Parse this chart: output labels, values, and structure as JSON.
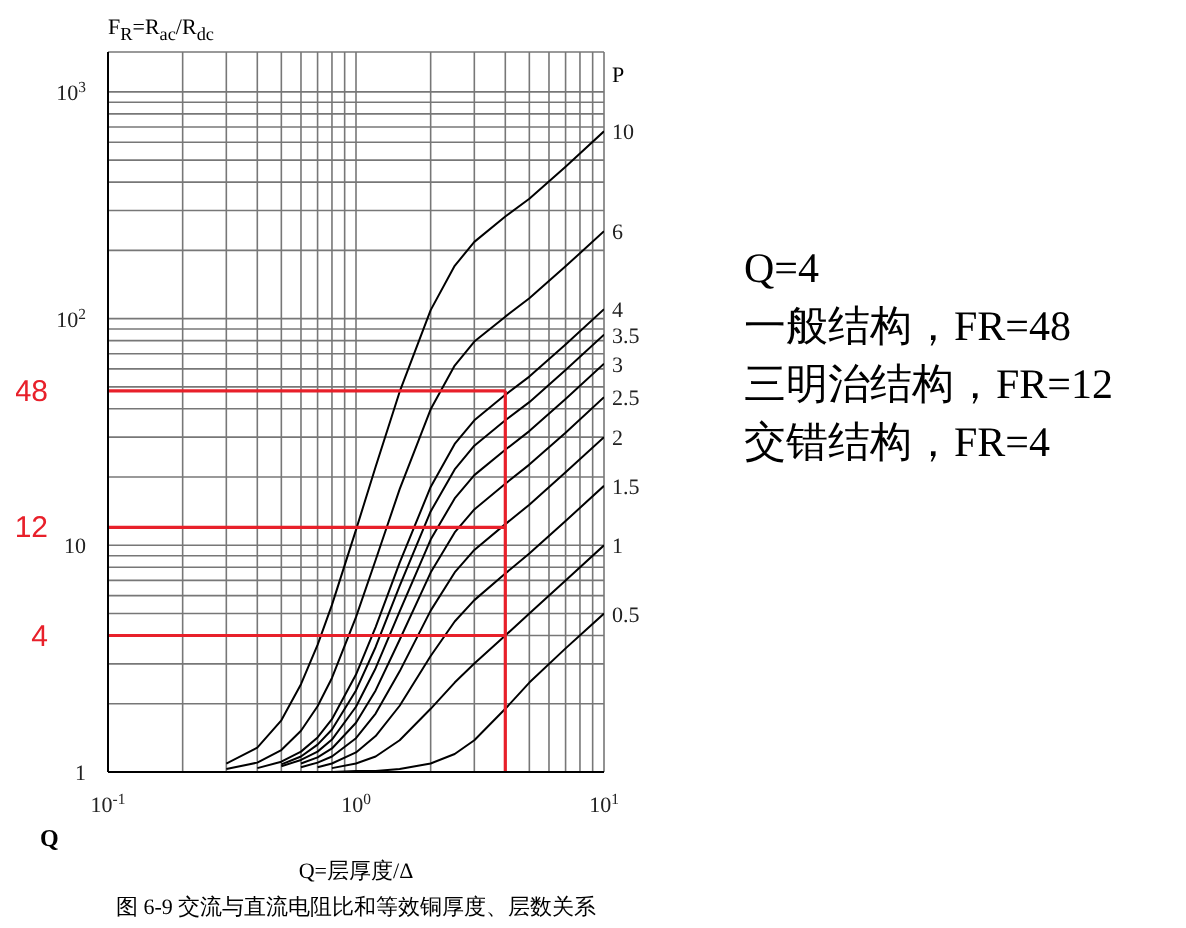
{
  "chart_data": [
    {
      "type": "line",
      "xlabel": "Q=层厚度/Δ",
      "ylabel": "F$_{R}$=R$_{ac}$/R$_{dc}$",
      "legend_title": "P",
      "log": "xy",
      "grid": true,
      "xlim": [
        0.1,
        10
      ],
      "ylim": [
        1,
        1500
      ],
      "xticks": [
        {
          "value": 0.1,
          "label": "10$^{-1}$"
        },
        {
          "value": 0.2,
          "label": null
        },
        {
          "value": 0.3,
          "label": null
        },
        {
          "value": 0.4,
          "label": null
        },
        {
          "value": 0.5,
          "label": null
        },
        {
          "value": 0.6,
          "label": null
        },
        {
          "value": 0.7,
          "label": null
        },
        {
          "value": 0.8,
          "label": null
        },
        {
          "value": 0.9,
          "label": null
        },
        {
          "value": 1,
          "label": "10$^{0}$"
        },
        {
          "value": 2,
          "label": null
        },
        {
          "value": 3,
          "label": null
        },
        {
          "value": 4,
          "label": null
        },
        {
          "value": 5,
          "label": null
        },
        {
          "value": 6,
          "label": null
        },
        {
          "value": 7,
          "label": null
        },
        {
          "value": 8,
          "label": null
        },
        {
          "value": 9,
          "label": null
        },
        {
          "value": 10,
          "label": "10$^{1}$"
        }
      ],
      "yticks": [
        1,
        {
          "value": 2,
          "label": null
        },
        {
          "value": 3,
          "label": null
        },
        {
          "value": 4,
          "label": null
        },
        {
          "value": 5,
          "label": null
        },
        {
          "value": 6,
          "label": null
        },
        {
          "value": 7,
          "label": null
        },
        {
          "value": 8,
          "label": null
        },
        {
          "value": 9,
          "label": null
        },
        10,
        {
          "value": 20,
          "label": null
        },
        {
          "value": 30,
          "label": null
        },
        {
          "value": 40,
          "label": null
        },
        {
          "value": 50,
          "label": null
        },
        {
          "value": 60,
          "label": null
        },
        {
          "value": 70,
          "label": null
        },
        {
          "value": 80,
          "label": null
        },
        {
          "value": 90,
          "label": null
        },
        {
          "value": 100,
          "label": "10$^{2}$"
        },
        {
          "value": 200,
          "label": null
        },
        {
          "value": 300,
          "label": null
        },
        {
          "value": 400,
          "label": null
        },
        {
          "value": 500,
          "label": null
        },
        {
          "value": 600,
          "label": null
        },
        {
          "value": 700,
          "label": null
        },
        {
          "value": 800,
          "label": null
        },
        {
          "value": 900,
          "label": null
        },
        {
          "value": 1000,
          "label": "10$^{3}$"
        }
      ],
      "series": [
        {
          "name": "10",
          "color": "#000000",
          "x": [
            0.3,
            0.4,
            0.5,
            0.6,
            0.7,
            0.8,
            1,
            1.2,
            1.5,
            2,
            2.5,
            3,
            4,
            5,
            7,
            10
          ],
          "values": [
            1.09,
            1.28,
            1.69,
            2.44,
            3.64,
            5.46,
            11.7,
            22.2,
            47.6,
            109,
            171,
            218,
            282,
            338,
            468,
            670
          ]
        },
        {
          "name": "6",
          "color": "#000000",
          "x": [
            0.3,
            0.4,
            0.5,
            0.6,
            0.7,
            0.8,
            1,
            1.2,
            1.5,
            2,
            2.5,
            3,
            4,
            5,
            7,
            10
          ],
          "values": [
            1.03,
            1.1,
            1.25,
            1.52,
            1.95,
            2.6,
            4.82,
            8.61,
            17.7,
            39.8,
            62.1,
            79.2,
            102,
            123,
            170,
            243
          ]
        },
        {
          "name": "4",
          "color": "#000000",
          "x": [
            0.4,
            0.5,
            0.6,
            0.7,
            0.8,
            1,
            1.2,
            1.5,
            2,
            2.5,
            3,
            4,
            5,
            7,
            10
          ],
          "values": [
            1.04,
            1.11,
            1.23,
            1.42,
            1.71,
            2.69,
            4.36,
            8.38,
            18.1,
            28.0,
            35.6,
            46.1,
            55.5,
            76.8,
            110
          ]
        },
        {
          "name": "3.5",
          "color": "#000000",
          "x": [
            0.5,
            0.6,
            0.7,
            0.8,
            1,
            1.2,
            1.5,
            2,
            2.5,
            3,
            4,
            5,
            7,
            10
          ],
          "values": [
            1.08,
            1.17,
            1.32,
            1.54,
            2.29,
            3.56,
            6.63,
            14.1,
            21.6,
            27.5,
            35.6,
            42.8,
            59.4,
            85.0
          ]
        },
        {
          "name": "3",
          "color": "#000000",
          "x": [
            0.5,
            0.6,
            0.7,
            0.8,
            1,
            1.2,
            1.5,
            2,
            2.5,
            3,
            4,
            5,
            7,
            10
          ],
          "values": [
            1.06,
            1.13,
            1.23,
            1.39,
            1.94,
            2.87,
            5.11,
            10.6,
            16.1,
            20.4,
            26.4,
            31.9,
            44.2,
            63.3
          ]
        },
        {
          "name": "2.5",
          "color": "#000000",
          "x": [
            0.6,
            0.7,
            0.8,
            1,
            1.2,
            1.5,
            2,
            2.5,
            3,
            4,
            5,
            7,
            10
          ],
          "values": [
            1.09,
            1.16,
            1.27,
            1.65,
            2.29,
            3.83,
            7.58,
            11.4,
            14.4,
            18.7,
            22.7,
            31.4,
            45.0
          ]
        },
        {
          "name": "2",
          "color": "#000000",
          "x": [
            0.6,
            0.7,
            0.8,
            1,
            1.2,
            1.5,
            2,
            2.5,
            3,
            4,
            5,
            7,
            10
          ],
          "values": [
            1.05,
            1.1,
            1.17,
            1.41,
            1.81,
            2.78,
            5.15,
            7.59,
            9.54,
            12.4,
            15.1,
            21.0,
            30.0
          ]
        },
        {
          "name": "1.5",
          "color": "#000000",
          "x": [
            0.7,
            0.8,
            1,
            1.2,
            1.5,
            2,
            2.5,
            3,
            4,
            5,
            7,
            10
          ],
          "values": [
            1.05,
            1.09,
            1.22,
            1.44,
            1.96,
            3.25,
            4.61,
            5.73,
            7.51,
            9.2,
            12.8,
            18.3
          ]
        },
        {
          "name": "1",
          "color": "#000000",
          "x": [
            0.8,
            1,
            1.2,
            1.5,
            2,
            2.5,
            3,
            4,
            5,
            7,
            10
          ],
          "values": [
            1.04,
            1.09,
            1.17,
            1.38,
            1.9,
            2.48,
            3.01,
            4.0,
            5.0,
            7.0,
            10.0
          ]
        },
        {
          "name": "0.5",
          "color": "#000000",
          "x": [
            0.6,
            0.8,
            1,
            1.2,
            1.5,
            2,
            2.5,
            3,
            4,
            5,
            7,
            10
          ],
          "values": [
            1.0,
            1.0,
            1.01,
            1.01,
            1.03,
            1.09,
            1.2,
            1.38,
            1.9,
            2.48,
            3.51,
            5.0
          ]
        }
      ],
      "ref_lines": [
        {
          "axis": "y",
          "value": 48,
          "label": "48",
          "color": "#e8202a"
        },
        {
          "axis": "y",
          "value": 12,
          "label": "12",
          "color": "#e8202a"
        },
        {
          "axis": "y",
          "value": 4,
          "label": "4",
          "color": "#e8202a"
        },
        {
          "axis": "x",
          "value": 4,
          "color": "#e8202a"
        }
      ],
      "annotations": [
        "Q",
        "图 6-9  交流与直流电阻比和等效铜厚度、层数关系"
      ]
    },
    {
      "type": "other",
      "annotations": [
        "Q=4",
        "一般结构，FR=48",
        "三明治结构，FR=12",
        "交错结构，FR=4"
      ]
    }
  ]
}
